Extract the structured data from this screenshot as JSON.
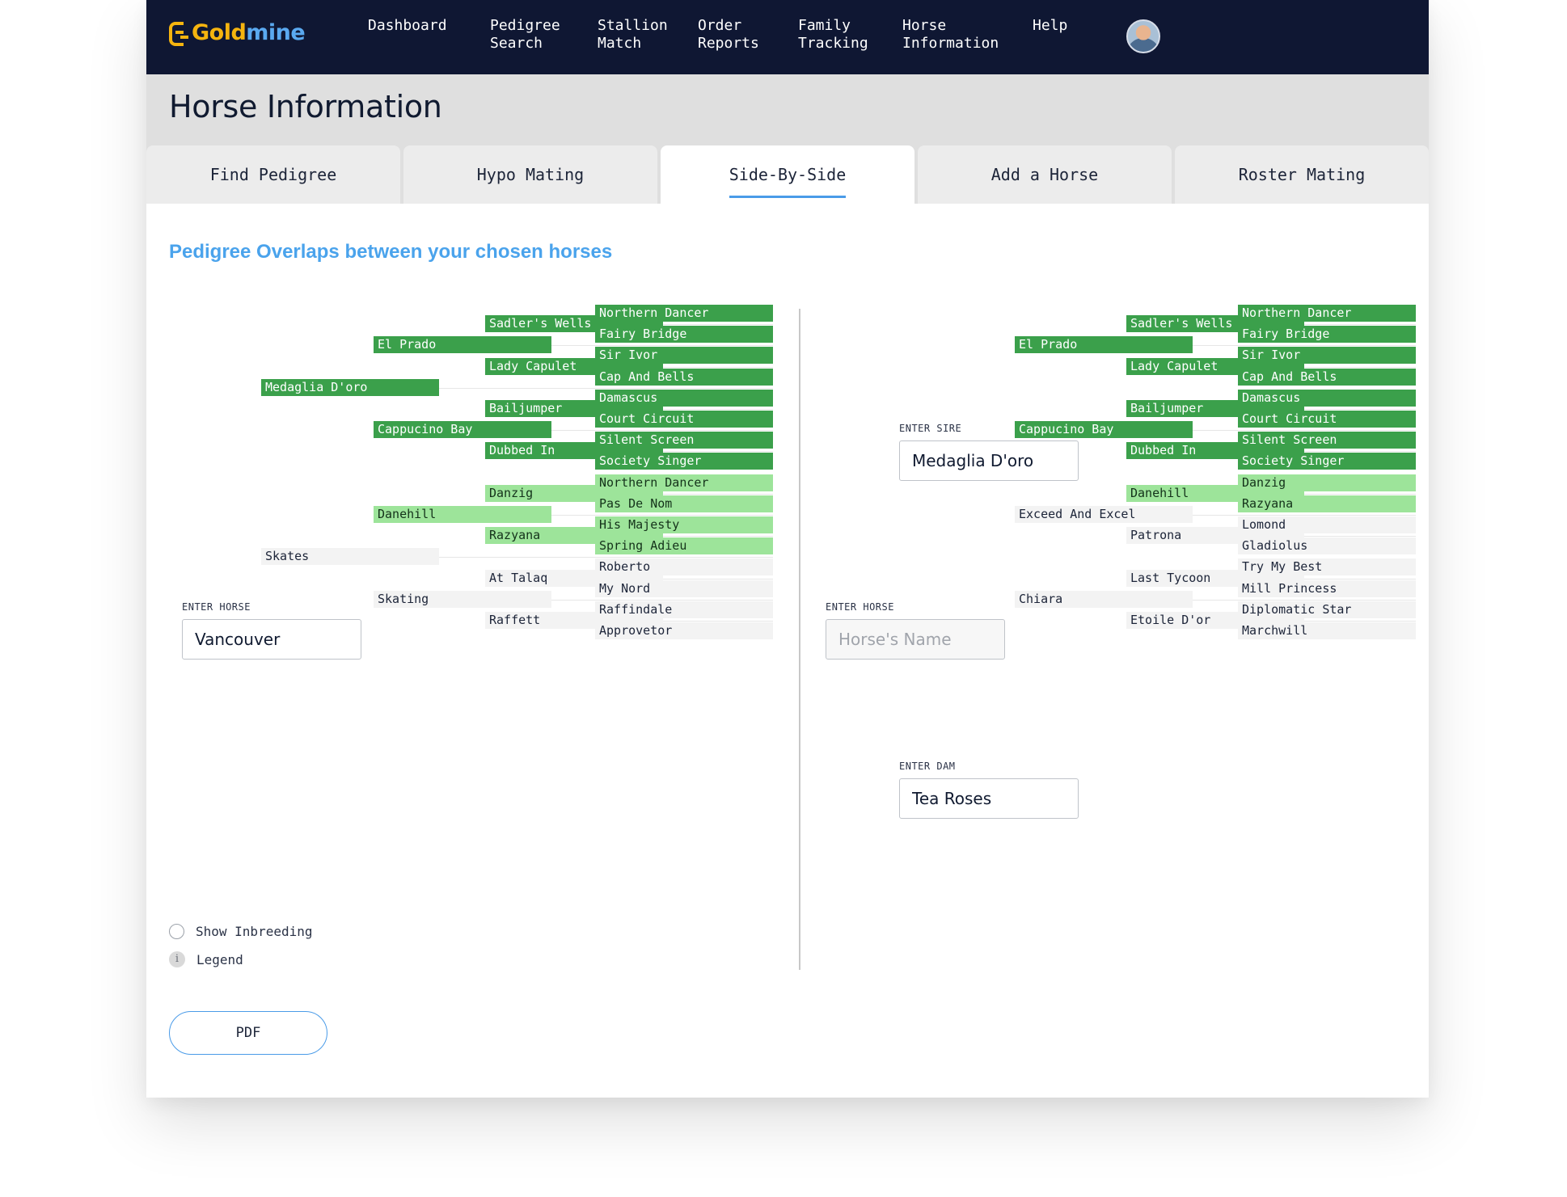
{
  "app": {
    "logo_gold": "Gold",
    "logo_mine": "mine"
  },
  "nav": {
    "items": [
      {
        "label": "Dashboard",
        "id": "dashboard"
      },
      {
        "label": "Pedigree\nSearch",
        "id": "pedigree-search"
      },
      {
        "label": "Stallion\nMatch",
        "id": "stallion-match"
      },
      {
        "label": "Order\nReports",
        "id": "order-reports"
      },
      {
        "label": "Family\nTracking",
        "id": "family-tracking"
      },
      {
        "label": "Horse\nInformation",
        "id": "horse-information"
      },
      {
        "label": "Help",
        "id": "help"
      }
    ]
  },
  "page": {
    "title": "Horse Information"
  },
  "tabs": [
    {
      "label": "Find Pedigree",
      "active": false
    },
    {
      "label": "Hypo Mating",
      "active": false
    },
    {
      "label": "Side-By-Side",
      "active": true
    },
    {
      "label": "Add a Horse",
      "active": false
    },
    {
      "label": "Roster Mating",
      "active": false
    }
  ],
  "section": {
    "title": "Pedigree Overlaps between your chosen horses"
  },
  "left": {
    "horse_label": "ENTER HORSE",
    "horse_value": "Vancouver",
    "pedigree": {
      "gen1": [
        {
          "name": "Medaglia D'oro",
          "overlap": "dark"
        },
        {
          "name": "Skates",
          "overlap": "none"
        }
      ],
      "gen2": [
        {
          "name": "El Prado",
          "overlap": "dark"
        },
        {
          "name": "Cappucino Bay",
          "overlap": "dark"
        },
        {
          "name": "Danehill",
          "overlap": "light"
        },
        {
          "name": "Skating",
          "overlap": "none"
        }
      ],
      "gen3": [
        {
          "name": "Sadler's Wells",
          "overlap": "dark"
        },
        {
          "name": "Lady Capulet",
          "overlap": "dark"
        },
        {
          "name": "Bailjumper",
          "overlap": "dark"
        },
        {
          "name": "Dubbed In",
          "overlap": "dark"
        },
        {
          "name": "Danzig",
          "overlap": "light"
        },
        {
          "name": "Razyana",
          "overlap": "light"
        },
        {
          "name": "At Talaq",
          "overlap": "none"
        },
        {
          "name": "Raffett",
          "overlap": "none"
        }
      ],
      "gen4": [
        {
          "name": "Northern Dancer",
          "overlap": "dark"
        },
        {
          "name": "Fairy Bridge",
          "overlap": "dark"
        },
        {
          "name": "Sir Ivor",
          "overlap": "dark"
        },
        {
          "name": "Cap And Bells",
          "overlap": "dark"
        },
        {
          "name": "Damascus",
          "overlap": "dark"
        },
        {
          "name": "Court Circuit",
          "overlap": "dark"
        },
        {
          "name": "Silent Screen",
          "overlap": "dark"
        },
        {
          "name": "Society Singer",
          "overlap": "dark"
        },
        {
          "name": "Northern Dancer",
          "overlap": "light"
        },
        {
          "name": "Pas De Nom",
          "overlap": "light"
        },
        {
          "name": "His Majesty",
          "overlap": "light"
        },
        {
          "name": "Spring Adieu",
          "overlap": "light"
        },
        {
          "name": "Roberto",
          "overlap": "none"
        },
        {
          "name": "My Nord",
          "overlap": "none"
        },
        {
          "name": "Raffindale",
          "overlap": "none"
        },
        {
          "name": "Approvetor",
          "overlap": "none"
        }
      ]
    }
  },
  "right": {
    "horse_label": "ENTER HORSE",
    "horse_placeholder": "Horse's Name",
    "sire_label": "ENTER SIRE",
    "sire_value": "Medaglia D'oro",
    "dam_label": "ENTER DAM",
    "dam_value": "Tea Roses",
    "pedigree": {
      "gen2": [
        {
          "name": "El Prado",
          "overlap": "dark"
        },
        {
          "name": "Cappucino Bay",
          "overlap": "dark"
        },
        {
          "name": "Exceed And Excel",
          "overlap": "none"
        },
        {
          "name": "Chiara",
          "overlap": "none"
        }
      ],
      "gen3": [
        {
          "name": "Sadler's Wells",
          "overlap": "dark"
        },
        {
          "name": "Lady Capulet",
          "overlap": "dark"
        },
        {
          "name": "Bailjumper",
          "overlap": "dark"
        },
        {
          "name": "Dubbed In",
          "overlap": "dark"
        },
        {
          "name": "Danehill",
          "overlap": "light"
        },
        {
          "name": "Patrona",
          "overlap": "none"
        },
        {
          "name": "Last Tycoon",
          "overlap": "none"
        },
        {
          "name": "Etoile D'or",
          "overlap": "none"
        }
      ],
      "gen4": [
        {
          "name": "Northern Dancer",
          "overlap": "dark"
        },
        {
          "name": "Fairy Bridge",
          "overlap": "dark"
        },
        {
          "name": "Sir Ivor",
          "overlap": "dark"
        },
        {
          "name": "Cap And Bells",
          "overlap": "dark"
        },
        {
          "name": "Damascus",
          "overlap": "dark"
        },
        {
          "name": "Court Circuit",
          "overlap": "dark"
        },
        {
          "name": "Silent Screen",
          "overlap": "dark"
        },
        {
          "name": "Society Singer",
          "overlap": "dark"
        },
        {
          "name": "Danzig",
          "overlap": "light"
        },
        {
          "name": "Razyana",
          "overlap": "light"
        },
        {
          "name": "Lomond",
          "overlap": "none"
        },
        {
          "name": "Gladiolus",
          "overlap": "none"
        },
        {
          "name": "Try My Best",
          "overlap": "none"
        },
        {
          "name": "Mill Princess",
          "overlap": "none"
        },
        {
          "name": "Diplomatic Star",
          "overlap": "none"
        },
        {
          "name": "Marchwill",
          "overlap": "none"
        }
      ]
    }
  },
  "options": {
    "show_inbreeding": "Show Inbreeding",
    "legend": "Legend",
    "legend_icon": "i",
    "legend_icon_name": "info-icon"
  },
  "actions": {
    "pdf_label": "PDF"
  },
  "colors": {
    "nav_bg": "#0f1733",
    "accent": "#4a9be8",
    "overlap_dark": "#3ba04b",
    "overlap_light": "#9de49a",
    "no_overlap": "#f3f3f3"
  }
}
